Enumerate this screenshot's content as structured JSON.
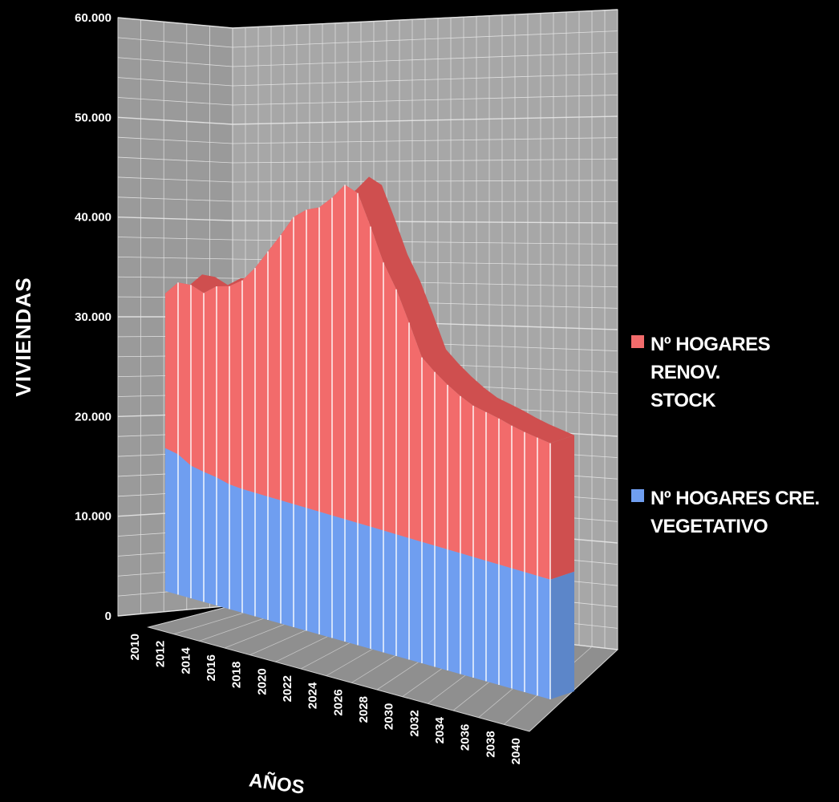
{
  "chart_data": {
    "type": "area",
    "stacked": true,
    "three_d": true,
    "xlabel": "AÑOS",
    "ylabel": "VIVIENDAS",
    "ylim": [
      0,
      60000
    ],
    "y_ticks": [
      "0",
      "10.000",
      "20.000",
      "30.000",
      "40.000",
      "50.000",
      "60.000"
    ],
    "x_ticks": [
      "2010",
      "2012",
      "2014",
      "2016",
      "2018",
      "2020",
      "2022",
      "2024",
      "2026",
      "2028",
      "2030",
      "2032",
      "2034",
      "2036",
      "2038",
      "2040"
    ],
    "x": [
      2010,
      2011,
      2012,
      2013,
      2014,
      2015,
      2016,
      2017,
      2018,
      2019,
      2020,
      2021,
      2022,
      2023,
      2024,
      2025,
      2026,
      2027,
      2028,
      2029,
      2030,
      2031,
      2032,
      2033,
      2034,
      2035,
      2036,
      2037,
      2038,
      2039,
      2040
    ],
    "grid": true,
    "legend_position": "right",
    "series": [
      {
        "name": "Nº HOGARES CRE. VEGETATIVO",
        "color": "#6f9ef0",
        "values": [
          17200,
          16900,
          16000,
          15700,
          15500,
          15100,
          15000,
          15000,
          15000,
          15000,
          15000,
          15000,
          15000,
          15000,
          15000,
          15000,
          15000,
          15000,
          15000,
          15000,
          15000,
          15000,
          15000,
          15000,
          15000,
          15000,
          15000,
          15000,
          15000,
          15000,
          15000
        ]
      },
      {
        "name": "Nº HOGARES RENOV. STOCK",
        "color": "#f26b6b",
        "values": [
          18600,
          20700,
          21800,
          21600,
          23100,
          24000,
          25300,
          27300,
          29800,
          32300,
          35000,
          36400,
          37200,
          38900,
          41000,
          40500,
          36900,
          33000,
          30200,
          26600,
          22800,
          21500,
          20400,
          19500,
          18800,
          18500,
          18200,
          17800,
          17500,
          17300,
          17100
        ]
      }
    ]
  },
  "legend": {
    "item1_line1": "Nº HOGARES RENOV.",
    "item1_line2": "STOCK",
    "item2_line1": "Nº HOGARES CRE.",
    "item2_line2": "VEGETATIVO"
  },
  "colors": {
    "background": "#000000",
    "wall": "#a7a7a7",
    "grid": "#e6e6e6",
    "renov": "#f26b6b",
    "renov_dark": "#cf4f4f",
    "vegetativo": "#6f9ef0",
    "vegetativo_dark": "#5c86c9"
  }
}
